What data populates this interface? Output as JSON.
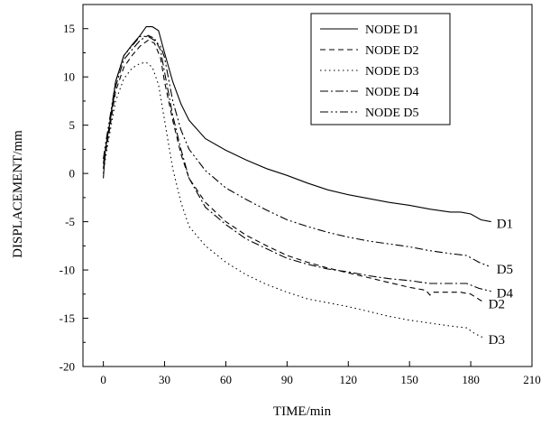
{
  "chart_data": {
    "type": "line",
    "xlabel": "TIME/min",
    "ylabel": "DISPLACEMENT/mm",
    "xlim": [
      -10,
      210
    ],
    "ylim": [
      -20,
      17.5
    ],
    "xticks": [
      0,
      30,
      60,
      90,
      120,
      150,
      180,
      210
    ],
    "yticks": [
      -20,
      -15,
      -10,
      -5,
      0,
      5,
      10,
      15
    ],
    "legend_position": "top-right",
    "grid": false,
    "series": [
      {
        "name": "NODE D1",
        "end_label": "D1",
        "dash": "solid",
        "points": [
          [
            0,
            -0.5
          ],
          [
            1,
            2.5
          ],
          [
            3,
            5
          ],
          [
            6,
            9.5
          ],
          [
            10,
            12.2
          ],
          [
            14,
            13.3
          ],
          [
            18,
            14.3
          ],
          [
            21,
            15.2
          ],
          [
            24,
            15.2
          ],
          [
            27,
            14.8
          ],
          [
            30,
            12.5
          ],
          [
            34,
            9.5
          ],
          [
            38,
            7.2
          ],
          [
            42,
            5.5
          ],
          [
            50,
            3.6
          ],
          [
            60,
            2.4
          ],
          [
            70,
            1.4
          ],
          [
            80,
            0.5
          ],
          [
            90,
            -0.2
          ],
          [
            100,
            -1
          ],
          [
            110,
            -1.7
          ],
          [
            120,
            -2.2
          ],
          [
            130,
            -2.6
          ],
          [
            140,
            -3
          ],
          [
            150,
            -3.3
          ],
          [
            160,
            -3.7
          ],
          [
            170,
            -4
          ],
          [
            175,
            -4
          ],
          [
            180,
            -4.2
          ],
          [
            185,
            -4.8
          ],
          [
            190,
            -5
          ]
        ]
      },
      {
        "name": "NODE D2",
        "end_label": "D2",
        "dash": "6,4",
        "points": [
          [
            0,
            0.5
          ],
          [
            1,
            2
          ],
          [
            3,
            4.5
          ],
          [
            6,
            8.5
          ],
          [
            10,
            11
          ],
          [
            14,
            12.2
          ],
          [
            18,
            13.2
          ],
          [
            22,
            13.8
          ],
          [
            25,
            13.5
          ],
          [
            28,
            12
          ],
          [
            30,
            9.5
          ],
          [
            34,
            5.5
          ],
          [
            38,
            2
          ],
          [
            42,
            -0.5
          ],
          [
            50,
            -3
          ],
          [
            60,
            -5
          ],
          [
            70,
            -6.4
          ],
          [
            80,
            -7.5
          ],
          [
            90,
            -8.5
          ],
          [
            100,
            -9.2
          ],
          [
            110,
            -9.8
          ],
          [
            120,
            -10.3
          ],
          [
            130,
            -10.8
          ],
          [
            140,
            -11.3
          ],
          [
            150,
            -11.8
          ],
          [
            158,
            -12.1
          ],
          [
            160,
            -12.6
          ],
          [
            162,
            -12.3
          ],
          [
            175,
            -12.3
          ],
          [
            180,
            -12.5
          ],
          [
            186,
            -13.3
          ]
        ]
      },
      {
        "name": "NODE D3",
        "end_label": "D3",
        "dash": "1.5,3.5",
        "points": [
          [
            0,
            0
          ],
          [
            1,
            1.5
          ],
          [
            3,
            4
          ],
          [
            6,
            7.5
          ],
          [
            10,
            9.8
          ],
          [
            14,
            10.9
          ],
          [
            18,
            11.4
          ],
          [
            21,
            11.5
          ],
          [
            24,
            11
          ],
          [
            27,
            9.2
          ],
          [
            30,
            5.5
          ],
          [
            34,
            0.5
          ],
          [
            38,
            -3
          ],
          [
            42,
            -5.5
          ],
          [
            50,
            -7.5
          ],
          [
            60,
            -9.2
          ],
          [
            70,
            -10.5
          ],
          [
            80,
            -11.5
          ],
          [
            90,
            -12.3
          ],
          [
            100,
            -13
          ],
          [
            110,
            -13.4
          ],
          [
            120,
            -13.8
          ],
          [
            130,
            -14.3
          ],
          [
            140,
            -14.8
          ],
          [
            150,
            -15.2
          ],
          [
            160,
            -15.5
          ],
          [
            170,
            -15.8
          ],
          [
            178,
            -16
          ],
          [
            182,
            -16.6
          ],
          [
            186,
            -17
          ]
        ]
      },
      {
        "name": "NODE D4",
        "end_label": "D4",
        "dash": "9,3,2,3",
        "points": [
          [
            0,
            1
          ],
          [
            1,
            2.5
          ],
          [
            3,
            5
          ],
          [
            6,
            9
          ],
          [
            10,
            11.8
          ],
          [
            14,
            12.8
          ],
          [
            18,
            13.8
          ],
          [
            22,
            14.3
          ],
          [
            25,
            14
          ],
          [
            28,
            12.8
          ],
          [
            30,
            10.5
          ],
          [
            34,
            6
          ],
          [
            38,
            2.5
          ],
          [
            42,
            -0.5
          ],
          [
            50,
            -3.5
          ],
          [
            60,
            -5.3
          ],
          [
            70,
            -6.8
          ],
          [
            80,
            -7.8
          ],
          [
            90,
            -8.8
          ],
          [
            100,
            -9.4
          ],
          [
            110,
            -9.9
          ],
          [
            120,
            -10.2
          ],
          [
            130,
            -10.6
          ],
          [
            140,
            -10.9
          ],
          [
            150,
            -11.1
          ],
          [
            160,
            -11.4
          ],
          [
            170,
            -11.4
          ],
          [
            178,
            -11.4
          ],
          [
            184,
            -11.9
          ],
          [
            190,
            -12.2
          ]
        ]
      },
      {
        "name": "NODE D5",
        "end_label": "D5",
        "dash": "9,3,2,3,2,3",
        "points": [
          [
            0,
            1.5
          ],
          [
            1,
            3
          ],
          [
            3,
            5.5
          ],
          [
            6,
            9.5
          ],
          [
            10,
            12.2
          ],
          [
            14,
            13.2
          ],
          [
            18,
            14.2
          ],
          [
            22,
            14.2
          ],
          [
            25,
            13.8
          ],
          [
            28,
            13.2
          ],
          [
            30,
            12
          ],
          [
            34,
            7.5
          ],
          [
            38,
            4.5
          ],
          [
            42,
            2.5
          ],
          [
            50,
            0.3
          ],
          [
            60,
            -1.5
          ],
          [
            70,
            -2.7
          ],
          [
            80,
            -3.8
          ],
          [
            90,
            -4.8
          ],
          [
            100,
            -5.5
          ],
          [
            110,
            -6.1
          ],
          [
            120,
            -6.6
          ],
          [
            130,
            -7
          ],
          [
            140,
            -7.3
          ],
          [
            150,
            -7.6
          ],
          [
            160,
            -8
          ],
          [
            170,
            -8.3
          ],
          [
            178,
            -8.5
          ],
          [
            184,
            -9.2
          ],
          [
            190,
            -9.7
          ]
        ]
      }
    ]
  }
}
